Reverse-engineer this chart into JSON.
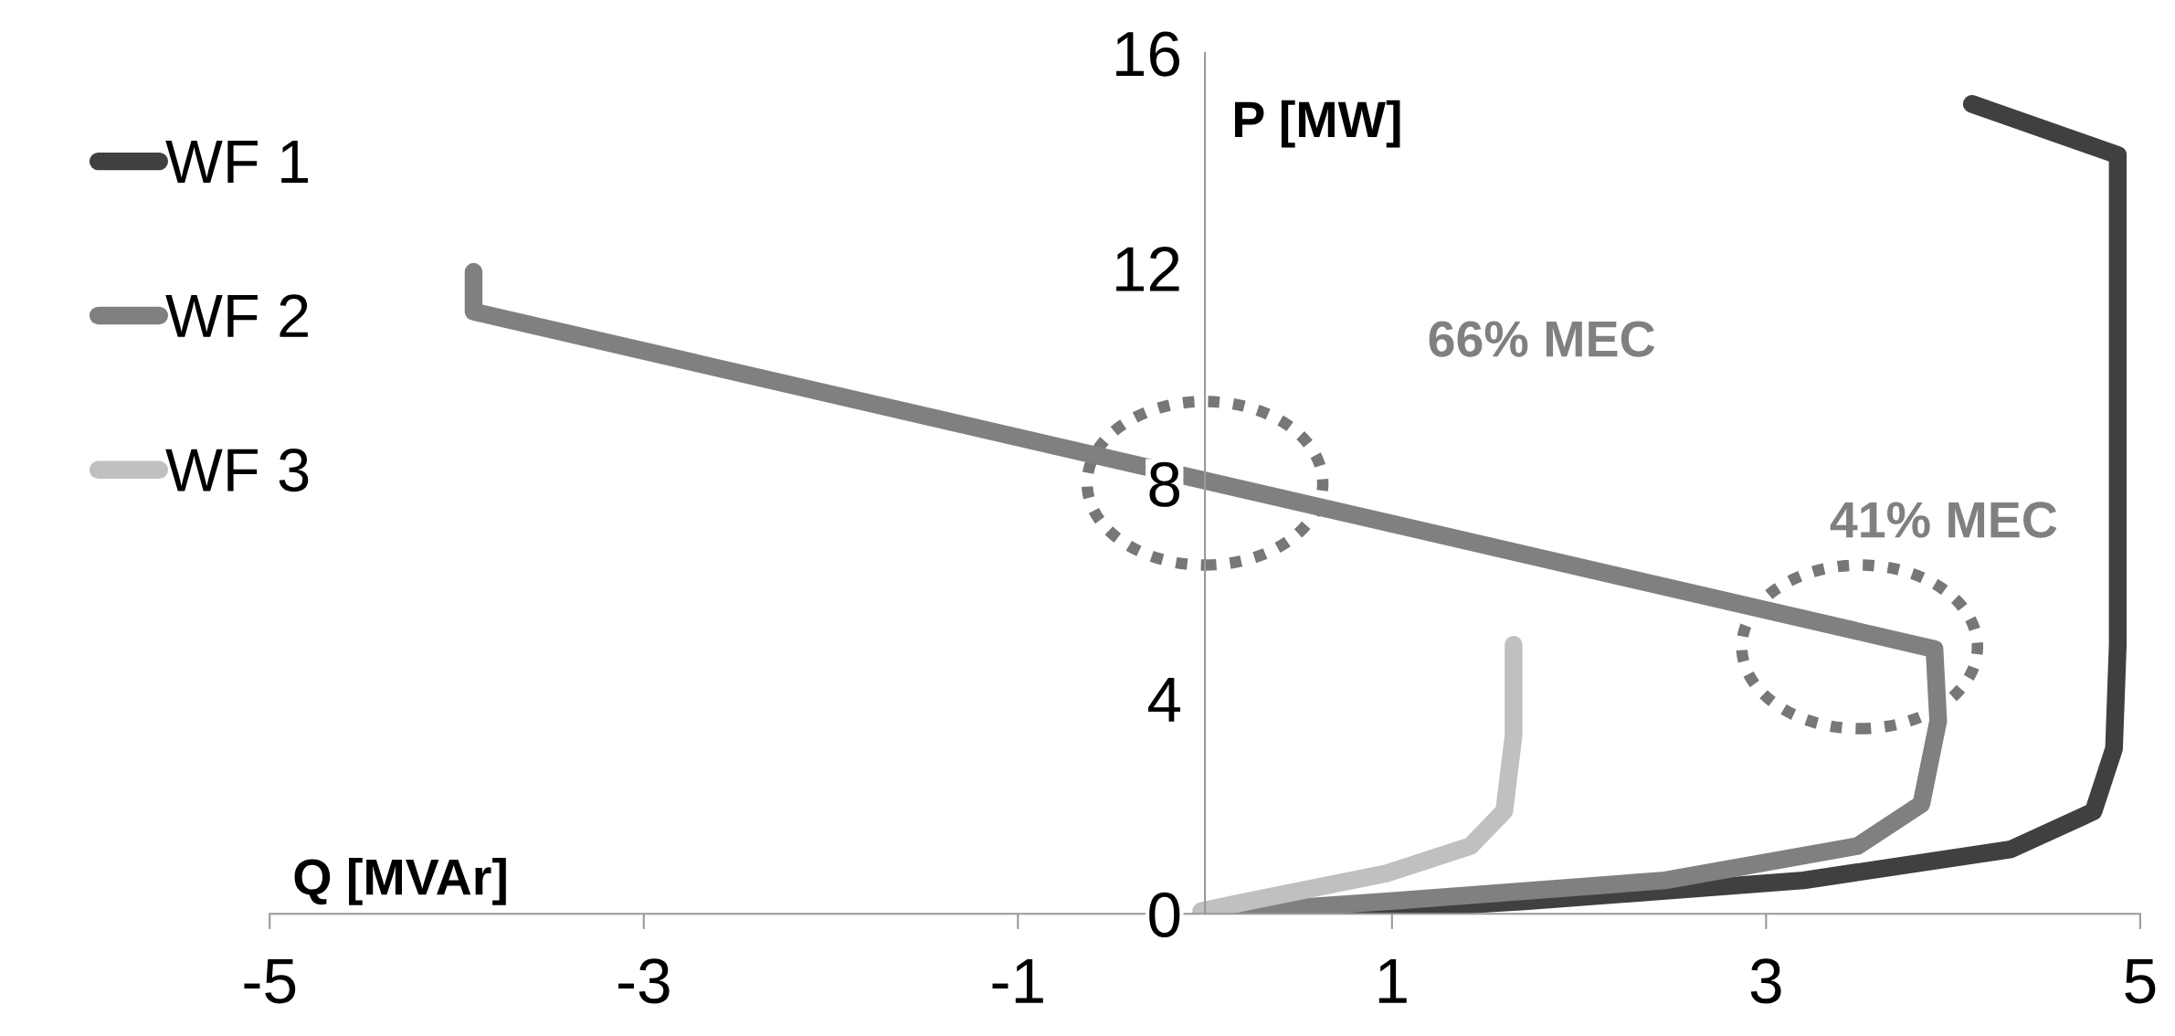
{
  "chart_data": {
    "type": "line",
    "xlabel": "Q [MVAr]",
    "ylabel": "P [MW]",
    "xlim": [
      -5,
      5
    ],
    "xticks": [
      -5,
      -3,
      -1,
      1,
      3,
      5
    ],
    "ylim": [
      0,
      16
    ],
    "yticks": [
      0,
      4,
      8,
      12,
      16
    ],
    "grid": false,
    "legend": "left",
    "line_style": "solid",
    "series": [
      {
        "name": "WF 1",
        "color": "#404040",
        "x": [
          4.1,
          4.88,
          4.88,
          4.86,
          4.75,
          4.31,
          3.2,
          1.71,
          0.97,
          0.5
        ],
        "values": [
          15.05,
          14.1,
          5.0,
          3.07,
          1.9,
          1.2,
          0.62,
          0.23,
          0.08,
          0.0
        ]
      },
      {
        "name": "WF 2",
        "color": "#808080",
        "x": [
          -3.91,
          -3.91,
          3.9,
          3.92,
          3.83,
          3.49,
          2.46,
          0.97,
          0.23,
          0
        ],
        "values": [
          11.93,
          11.19,
          4.92,
          3.58,
          2.04,
          1.26,
          0.62,
          0.23,
          0.05,
          0
        ]
      },
      {
        "name": "WF 3",
        "color": "#c0c0c0",
        "x": [
          1.65,
          1.65,
          1.6,
          1.42,
          0.97,
          0.23,
          -0.02
        ],
        "values": [
          5.0,
          3.32,
          1.91,
          1.26,
          0.75,
          0.23,
          0.05
        ]
      }
    ],
    "annotations": [
      "66% MEC",
      "41% MEC"
    ]
  }
}
